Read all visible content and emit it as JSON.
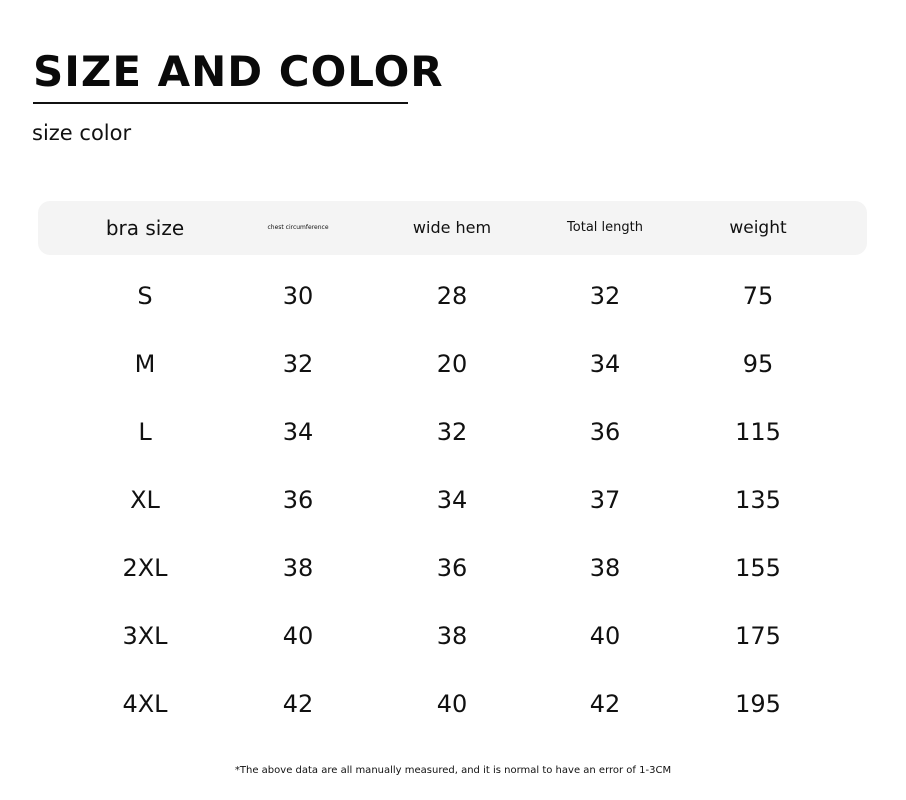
{
  "title": "SIZE AND COLOR",
  "subtitle": "size color",
  "table": {
    "headers": [
      "bra size",
      "chest circumference",
      "wide hem",
      "Total length",
      "weight"
    ],
    "rows": [
      [
        "S",
        "30",
        "28",
        "32",
        "75"
      ],
      [
        "M",
        "32",
        "20",
        "34",
        "95"
      ],
      [
        "L",
        "34",
        "32",
        "36",
        "115"
      ],
      [
        "XL",
        "36",
        "34",
        "37",
        "135"
      ],
      [
        "2XL",
        "38",
        "36",
        "38",
        "155"
      ],
      [
        "3XL",
        "40",
        "38",
        "40",
        "175"
      ],
      [
        "4XL",
        "42",
        "40",
        "42",
        "195"
      ]
    ]
  },
  "note": "*The above data are all manually measured, and it is normal to have an error of 1-3CM"
}
